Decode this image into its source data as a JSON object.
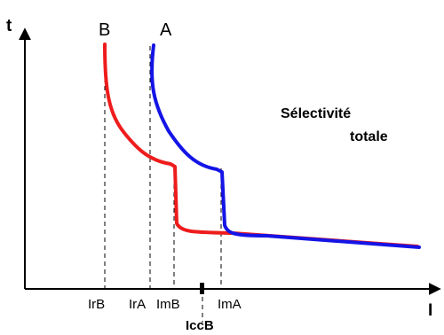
{
  "axes": {
    "y_label": "t",
    "x_label": "I"
  },
  "curves": {
    "b": {
      "label": "B",
      "color": "#ee1c1c"
    },
    "a": {
      "label": "A",
      "color": "#1414e6"
    }
  },
  "ticks": {
    "irb": "IrB",
    "ira": "IrA",
    "imb": "ImB",
    "ima": "ImA",
    "iccb": "IccB"
  },
  "annotation": {
    "line1": "Sélectivité",
    "line2": "totale"
  },
  "colors": {
    "axis": "#000000",
    "background": "#ffffff"
  }
}
